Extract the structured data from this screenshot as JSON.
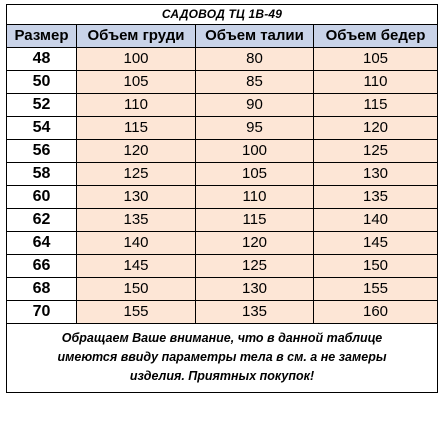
{
  "title": "САДОВОД ТЦ 1В-49",
  "headers": [
    "Размер",
    "Объем груди",
    "Объем талии",
    "Объем бедер"
  ],
  "rows": [
    [
      "48",
      "100",
      "80",
      "105"
    ],
    [
      "50",
      "105",
      "85",
      "110"
    ],
    [
      "52",
      "110",
      "90",
      "115"
    ],
    [
      "54",
      "115",
      "95",
      "120"
    ],
    [
      "56",
      "120",
      "100",
      "125"
    ],
    [
      "58",
      "125",
      "105",
      "130"
    ],
    [
      "60",
      "130",
      "110",
      "135"
    ],
    [
      "62",
      "135",
      "115",
      "140"
    ],
    [
      "64",
      "140",
      "120",
      "145"
    ],
    [
      "66",
      "145",
      "125",
      "150"
    ],
    [
      "68",
      "150",
      "130",
      "155"
    ],
    [
      "70",
      "155",
      "135",
      "160"
    ]
  ],
  "note": {
    "line1": "Обращаем Ваше внимание, что в данной таблице",
    "line2": "имеются ввиду параметры тела в см. а не замеры",
    "line3": "изделия. Приятных покупок!"
  },
  "colors": {
    "header_bg": "#c9d3e8",
    "value_bg": "#fde6d6",
    "border": "#000000"
  }
}
